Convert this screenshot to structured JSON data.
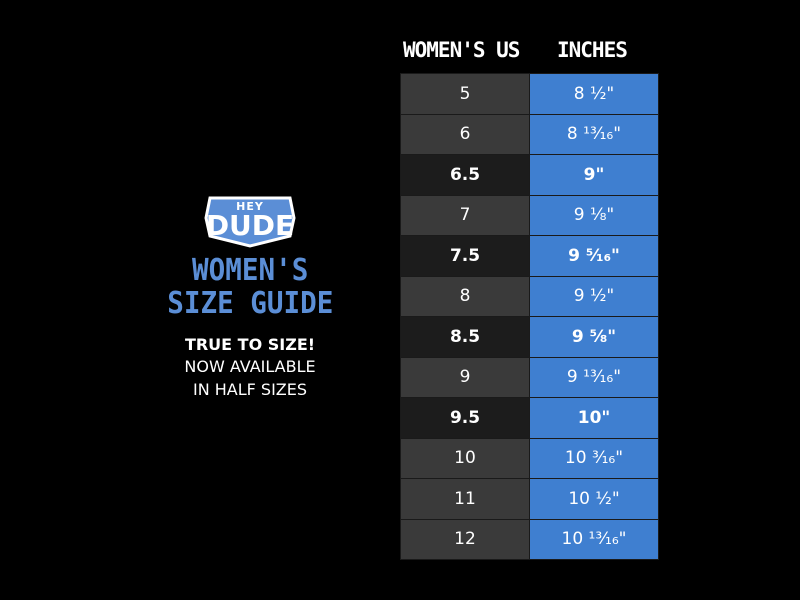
{
  "logo": {
    "top": "HEY",
    "main": "DUDE"
  },
  "guide": {
    "title_line1": "WOMEN'S",
    "title_line2": "SIZE GUIDE",
    "tagline_strong": "TRUE TO SIZE!",
    "tagline_line2": "NOW AVAILABLE",
    "tagline_line3": "IN HALF SIZES"
  },
  "table": {
    "headers": {
      "us": "WOMEN'S US",
      "inches": "INCHES"
    },
    "rows": [
      {
        "us": "5",
        "inches": "8 ½\"",
        "bold": false
      },
      {
        "us": "6",
        "inches": "8 ¹³⁄₁₆\"",
        "bold": false
      },
      {
        "us": "6.5",
        "inches": "9\"",
        "bold": true
      },
      {
        "us": "7",
        "inches": "9 ⅛\"",
        "bold": false
      },
      {
        "us": "7.5",
        "inches": "9 ⁵⁄₁₆\"",
        "bold": true
      },
      {
        "us": "8",
        "inches": "9 ½\"",
        "bold": false
      },
      {
        "us": "8.5",
        "inches": "9 ⅝\"",
        "bold": true
      },
      {
        "us": "9",
        "inches": "9 ¹³⁄₁₆\"",
        "bold": false
      },
      {
        "us": "9.5",
        "inches": "10\"",
        "bold": true
      },
      {
        "us": "10",
        "inches": "10 ³⁄₁₆\"",
        "bold": false
      },
      {
        "us": "11",
        "inches": "10 ½\"",
        "bold": false
      },
      {
        "us": "12",
        "inches": "10 ¹³⁄₁₆\"",
        "bold": false
      }
    ]
  },
  "colors": {
    "background": "#000000",
    "accent_blue": "#3f7fd0",
    "title_blue": "#5b8ed6",
    "gray_cell": "#3a3a3a"
  }
}
